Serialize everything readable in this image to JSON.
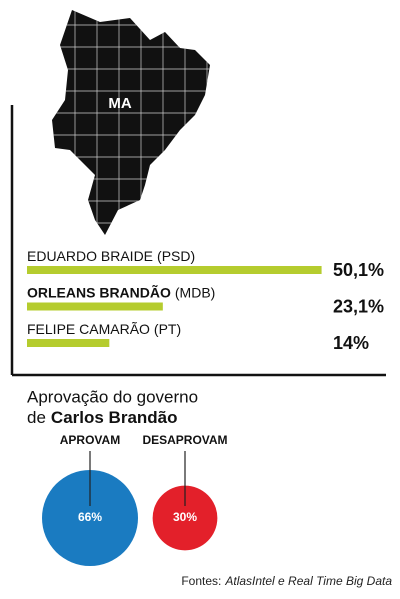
{
  "map_label": "MA",
  "chart_data": [
    {
      "type": "bar",
      "orientation": "horizontal",
      "categories": [
        "EDUARDO BRAIDE",
        "ORLEANS BRANDÃO",
        "FELIPE CAMARÃO"
      ],
      "parties": [
        "(PSD)",
        "(MDB)",
        "(PT)"
      ],
      "bold": [
        false,
        true,
        false
      ],
      "values": [
        50.1,
        23.1,
        14
      ],
      "value_labels": [
        "50,1%",
        "23,1%",
        "14%"
      ],
      "color": "#b5cc2e",
      "xlim": [
        0,
        50
      ]
    },
    {
      "type": "bubble",
      "title": [
        "Aprovação do governo",
        "de"
      ],
      "title_highlight": "Carlos Brandão",
      "categories": [
        "APROVAM",
        "DESAPROVAM"
      ],
      "values": [
        66,
        30
      ],
      "value_labels": [
        "66%",
        "30%"
      ],
      "colors": [
        "#1a7bc1",
        "#e3202a"
      ]
    }
  ],
  "source_label": "Fontes:",
  "source": "AtlasIntel e Real Time Big Data"
}
